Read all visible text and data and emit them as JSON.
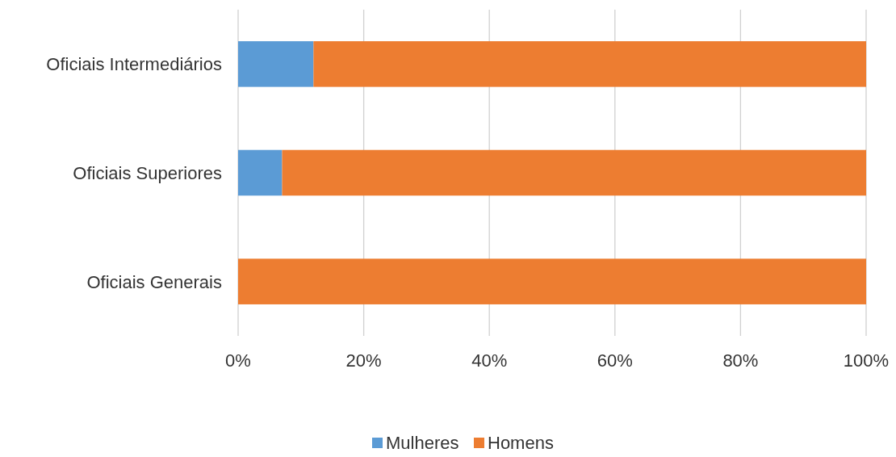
{
  "chart_data": {
    "type": "bar",
    "orientation": "horizontal",
    "stacked": true,
    "categories": [
      "Oficiais Intermediários",
      "Oficiais Superiores",
      "Oficiais Generais"
    ],
    "series": [
      {
        "name": "Mulheres",
        "color": "#5b9bd5",
        "values": [
          12,
          7,
          0
        ]
      },
      {
        "name": "Homens",
        "color": "#ed7d31",
        "values": [
          88,
          93,
          100
        ]
      }
    ],
    "xlim": [
      0,
      100
    ],
    "xticks": [
      {
        "value": 0,
        "label": "0%"
      },
      {
        "value": 20,
        "label": "20%"
      },
      {
        "value": 40,
        "label": "40%"
      },
      {
        "value": 60,
        "label": "60%"
      },
      {
        "value": 80,
        "label": "80%"
      },
      {
        "value": 100,
        "label": "100%"
      }
    ],
    "grid": "x",
    "legend": "bottom"
  }
}
